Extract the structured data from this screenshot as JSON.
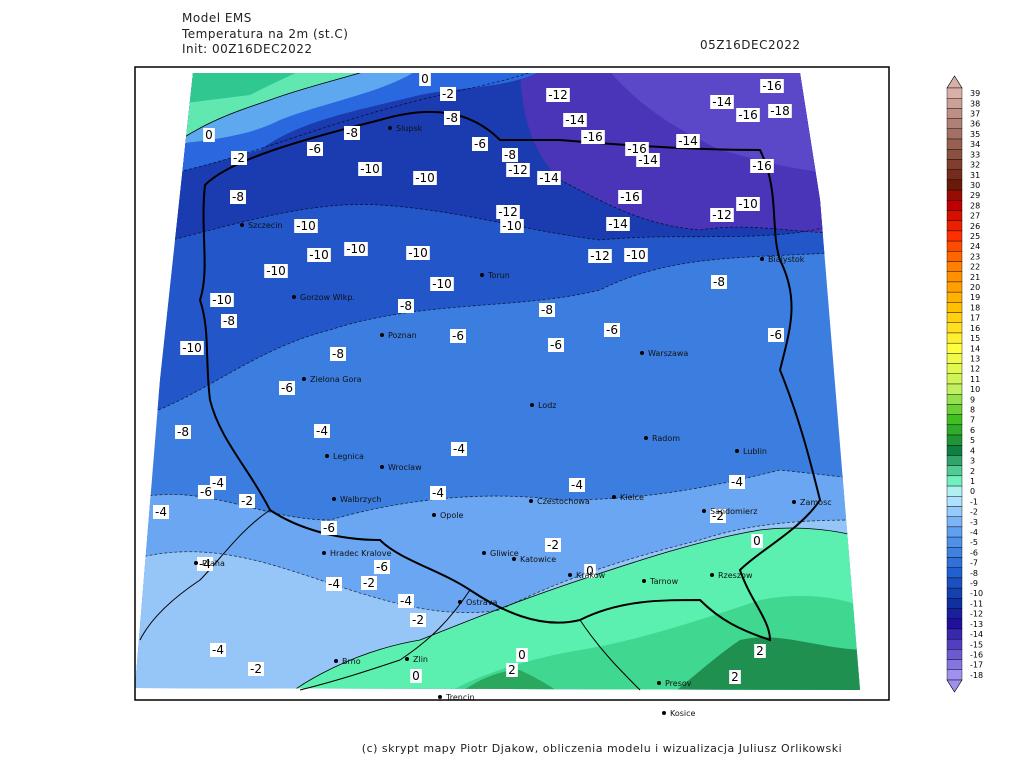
{
  "header": {
    "model": "Model EMS",
    "field": "Temperatura na 2m (st.C)",
    "init": "Init: 00Z16DEC2022",
    "valid": "05Z16DEC2022"
  },
  "map": {
    "contour_labels": [
      0,
      -2,
      -12,
      -16,
      -14,
      -16,
      -18,
      -8,
      -14,
      0,
      -8,
      -16,
      -14,
      -16,
      -6,
      -6,
      -2,
      -8,
      -10,
      -12,
      -10,
      -14,
      -14,
      -16,
      -16,
      -10,
      -8,
      -12,
      -12,
      -10,
      -14,
      -10,
      -10,
      -10,
      -10,
      -12,
      -10,
      -10,
      -10,
      -8,
      -10,
      -8,
      -8,
      -8,
      -6,
      -6,
      -6,
      -6,
      -10,
      -8,
      -6,
      -8,
      -4,
      -4,
      -4,
      -4,
      -6,
      -2,
      -4,
      -4,
      -4,
      -2,
      -6,
      0,
      -2,
      -6,
      -4,
      0,
      -4,
      -2,
      -4,
      -2,
      -4,
      2,
      -2,
      0,
      2,
      0,
      2
    ],
    "cities": [
      "Slupsk",
      "Szczecin",
      "Gorzow Wlkp.",
      "Torun",
      "Bialystok",
      "Poznan",
      "Warszawa",
      "Zielona Gora",
      "Lodz",
      "Radom",
      "Lublin",
      "Legnica",
      "Wroclaw",
      "Walbrzych",
      "Opole",
      "Czestochowa",
      "Kielce",
      "Sandomierz",
      "Zamosc",
      "Hradec Kralove",
      "Praha",
      "Gliwice",
      "Katowice",
      "Krakow",
      "Tarnow",
      "Rzeszow",
      "Ostrava",
      "Brno",
      "Zlin",
      "Trencin",
      "Presov",
      "Kosice"
    ]
  },
  "colorbar": {
    "levels": [
      39,
      38,
      37,
      36,
      35,
      34,
      33,
      32,
      31,
      30,
      29,
      28,
      27,
      26,
      25,
      24,
      23,
      22,
      21,
      20,
      19,
      18,
      17,
      16,
      15,
      14,
      13,
      12,
      11,
      10,
      9,
      8,
      7,
      6,
      5,
      4,
      3,
      2,
      1,
      0,
      -1,
      -2,
      -3,
      -4,
      -5,
      -6,
      -7,
      -8,
      -9,
      -10,
      -11,
      -12,
      -13,
      -14,
      -15,
      -16,
      -17,
      -18
    ]
  },
  "footer": "(c) skrypt mapy Piotr Djakow, obliczenia modelu i wizualizacja Juliusz Orlikowski"
}
